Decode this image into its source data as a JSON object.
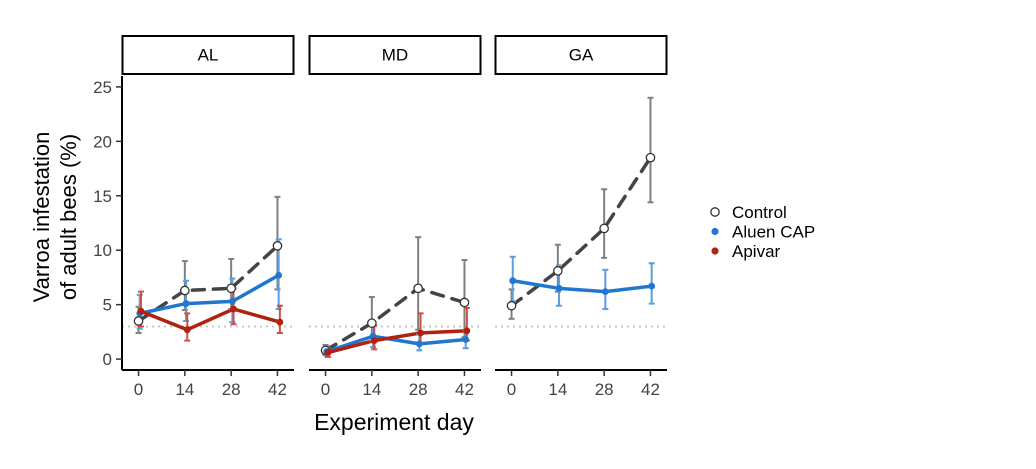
{
  "chart_data": {
    "type": "line",
    "ylabel_lines": [
      "Varroa infestation",
      "of adult bees (%)"
    ],
    "xlabel": "Experiment day",
    "x_ticks": [
      0,
      14,
      28,
      42
    ],
    "y_ticks": [
      0,
      5,
      10,
      15,
      20,
      25
    ],
    "ylim": [
      -1,
      26
    ],
    "xlim": [
      -5,
      47
    ],
    "threshold": 3,
    "grid": false,
    "legend_position": "right",
    "legend": [
      {
        "name": "Control",
        "color": "#444444",
        "marker": "open-circle"
      },
      {
        "name": "Aluen CAP",
        "color": "#1f77d0",
        "marker": "filled-circle"
      },
      {
        "name": "Apivar",
        "color": "#b22010",
        "marker": "filled-circle"
      }
    ],
    "colors": {
      "control": "#444444",
      "control_err": "#808080",
      "aluen": "#1f77d0",
      "aluen_err": "#5b9ee0",
      "apivar": "#b22010",
      "apivar_err": "#d05040",
      "threshold": "#c8c8c8"
    },
    "panels": [
      {
        "label": "AL",
        "series": [
          {
            "name": "Control",
            "x": [
              0,
              14,
              28,
              42
            ],
            "y": [
              3.5,
              6.3,
              6.5,
              10.4
            ],
            "lo": [
              2.4,
              4.5,
              4.6,
              6.4
            ],
            "hi": [
              4.8,
              9.0,
              9.2,
              14.9
            ]
          },
          {
            "name": "Aluen CAP",
            "x": [
              0,
              14,
              28,
              42
            ],
            "y": [
              4.2,
              5.1,
              5.3,
              7.7
            ],
            "lo": [
              2.8,
              3.5,
              3.4,
              4.6
            ],
            "hi": [
              5.9,
              7.2,
              7.4,
              11.0
            ]
          },
          {
            "name": "Apivar",
            "x": [
              0,
              14,
              28,
              42
            ],
            "y": [
              4.4,
              2.7,
              4.6,
              3.4
            ],
            "lo": [
              3.0,
              1.7,
              3.2,
              2.4
            ],
            "hi": [
              6.2,
              4.2,
              6.5,
              4.9
            ]
          }
        ]
      },
      {
        "label": "MD",
        "series": [
          {
            "name": "Control",
            "x": [
              0,
              14,
              28,
              42
            ],
            "y": [
              0.8,
              3.3,
              6.5,
              5.2
            ],
            "lo": [
              0.4,
              1.7,
              2.7,
              2.0
            ],
            "hi": [
              1.3,
              5.7,
              11.2,
              9.1
            ]
          },
          {
            "name": "Aluen CAP",
            "x": [
              0,
              14,
              28,
              42
            ],
            "y": [
              0.7,
              2.1,
              1.4,
              1.8
            ],
            "lo": [
              0.3,
              1.1,
              0.8,
              1.0
            ],
            "hi": [
              1.2,
              3.4,
              2.3,
              2.7
            ]
          },
          {
            "name": "Apivar",
            "x": [
              0,
              14,
              28,
              42
            ],
            "y": [
              0.6,
              1.7,
              2.4,
              2.6
            ],
            "lo": [
              0.2,
              0.9,
              1.4,
              1.7
            ],
            "hi": [
              1.0,
              3.1,
              4.2,
              4.7
            ]
          }
        ]
      },
      {
        "label": "GA",
        "series": [
          {
            "name": "Control",
            "x": [
              0,
              14,
              28,
              42
            ],
            "y": [
              4.9,
              8.1,
              12.0,
              18.5
            ],
            "lo": [
              3.7,
              6.2,
              9.3,
              14.4
            ],
            "hi": [
              6.4,
              10.5,
              15.6,
              24.0
            ]
          },
          {
            "name": "Aluen CAP",
            "x": [
              0,
              14,
              28,
              42
            ],
            "y": [
              7.2,
              6.5,
              6.2,
              6.7
            ],
            "lo": [
              5.3,
              4.9,
              4.6,
              5.1
            ],
            "hi": [
              9.4,
              8.6,
              8.2,
              8.8
            ]
          }
        ]
      }
    ]
  }
}
